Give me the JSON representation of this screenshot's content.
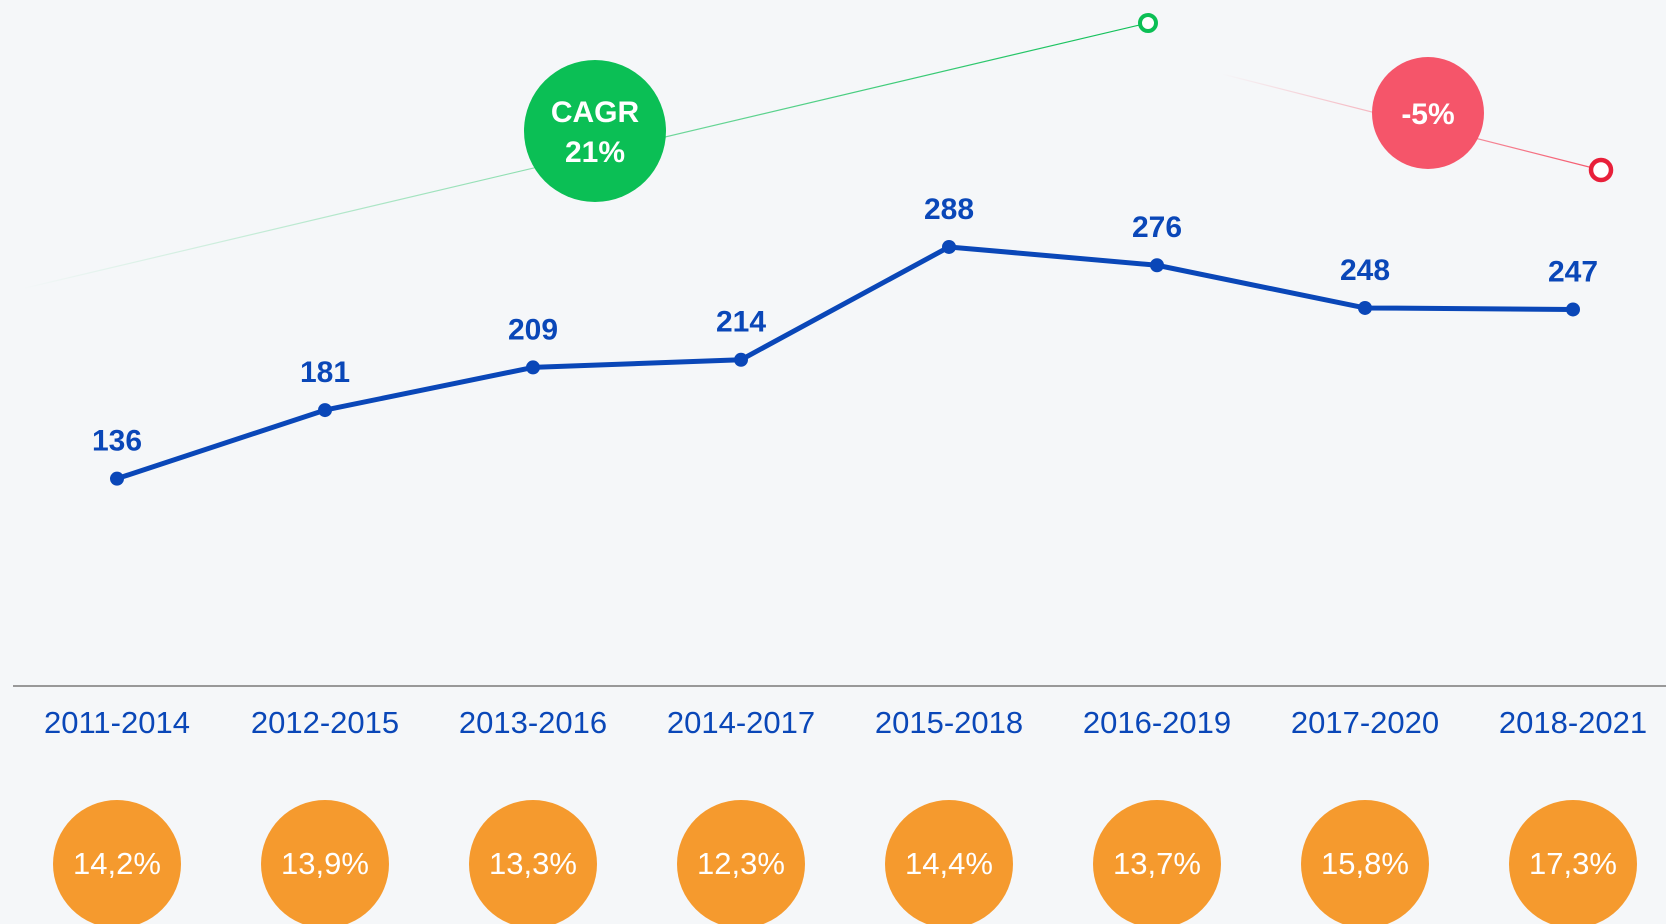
{
  "chart_data": {
    "type": "line",
    "categories": [
      "2011-2014",
      "2012-2015",
      "2013-2016",
      "2014-2017",
      "2015-2018",
      "2016-2019",
      "2017-2020",
      "2018-2021"
    ],
    "series": [
      {
        "color": "#0a47b8",
        "values": [
          136,
          181,
          209,
          214,
          288,
          276,
          248,
          247
        ]
      }
    ],
    "ylim": [
      0,
      450
    ],
    "badges": [
      "14,2%",
      "13,9%",
      "13,3%",
      "12,3%",
      "14,4%",
      "13,7%",
      "15,8%",
      "17,3%"
    ],
    "badge_color": "#f59a2e",
    "annotations": {
      "growth": [
        "CAGR",
        "21%"
      ],
      "growth_color": "#0bbf55",
      "decline": "-5%",
      "decline_color": "#f5556a"
    }
  }
}
